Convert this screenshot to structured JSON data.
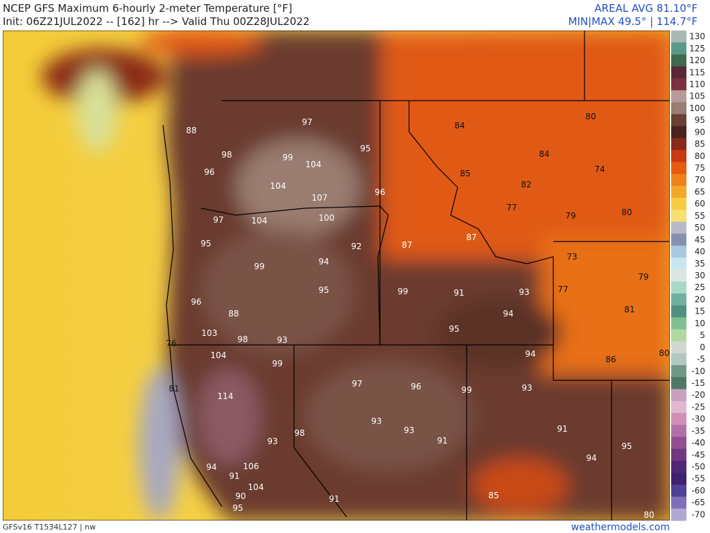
{
  "header": {
    "title": "NCEP GFS Maximum 6-hourly 2-meter Temperature [°F]",
    "init": "Init: 06Z21JUL2022 -- [162] hr --> Valid Thu 00Z28JUL2022",
    "areal_avg": "AREAL AVG 81.10°F",
    "min_max": "MIN|MAX 49.5° | 114.7°F"
  },
  "colorbar": {
    "labels": [
      130,
      125,
      120,
      115,
      110,
      105,
      100,
      95,
      90,
      85,
      80,
      75,
      70,
      65,
      60,
      55,
      50,
      45,
      40,
      35,
      30,
      25,
      20,
      15,
      10,
      5,
      0,
      -5,
      -10,
      -15,
      -20,
      -25,
      -30,
      -35,
      -40,
      -45,
      -50,
      -55,
      -60,
      -65,
      -70
    ],
    "colors": [
      "#a8b8b4",
      "#5a9a88",
      "#3e6a50",
      "#5a2838",
      "#7a3040",
      "#b89a98",
      "#9a7c70",
      "#6a4034",
      "#4a2420",
      "#8a2a18",
      "#c83a10",
      "#e85a10",
      "#f08018",
      "#f4a828",
      "#f8cc40",
      "#f8e070",
      "#b8b8c8",
      "#8890b0",
      "#a8c8e0",
      "#c8e8f0",
      "#d8e8e0",
      "#a8d8c8",
      "#70b0a0",
      "#509080",
      "#80c090",
      "#b0d8a0",
      "#d0d8d0",
      "#b0c8c0",
      "#709888",
      "#507868",
      "#c8a0c0",
      "#e0b8d0",
      "#d090b8",
      "#b070a8",
      "#905090",
      "#703880",
      "#502878",
      "#402070",
      "#504098",
      "#8070b8",
      "#b0a8d0"
    ]
  },
  "map": {
    "labels": [
      88,
      98,
      96,
      97,
      99,
      104,
      95,
      104,
      107,
      96,
      97,
      104,
      100,
      92,
      87,
      87,
      95,
      99,
      94,
      95,
      99,
      91,
      93,
      96,
      88,
      94,
      103,
      98,
      93,
      95,
      104,
      99,
      94,
      97,
      96,
      99,
      93,
      114,
      93,
      93,
      91,
      91,
      98,
      93,
      94,
      95,
      94,
      106,
      91,
      104,
      90,
      95,
      91,
      85,
      80,
      84,
      80,
      84,
      74,
      85,
      82,
      77,
      79,
      80,
      73,
      79,
      77,
      81,
      86,
      80,
      76,
      81
    ]
  },
  "footer": {
    "model": "GFSv16 T1534L127 | nw",
    "site": "weathermodels.com"
  }
}
